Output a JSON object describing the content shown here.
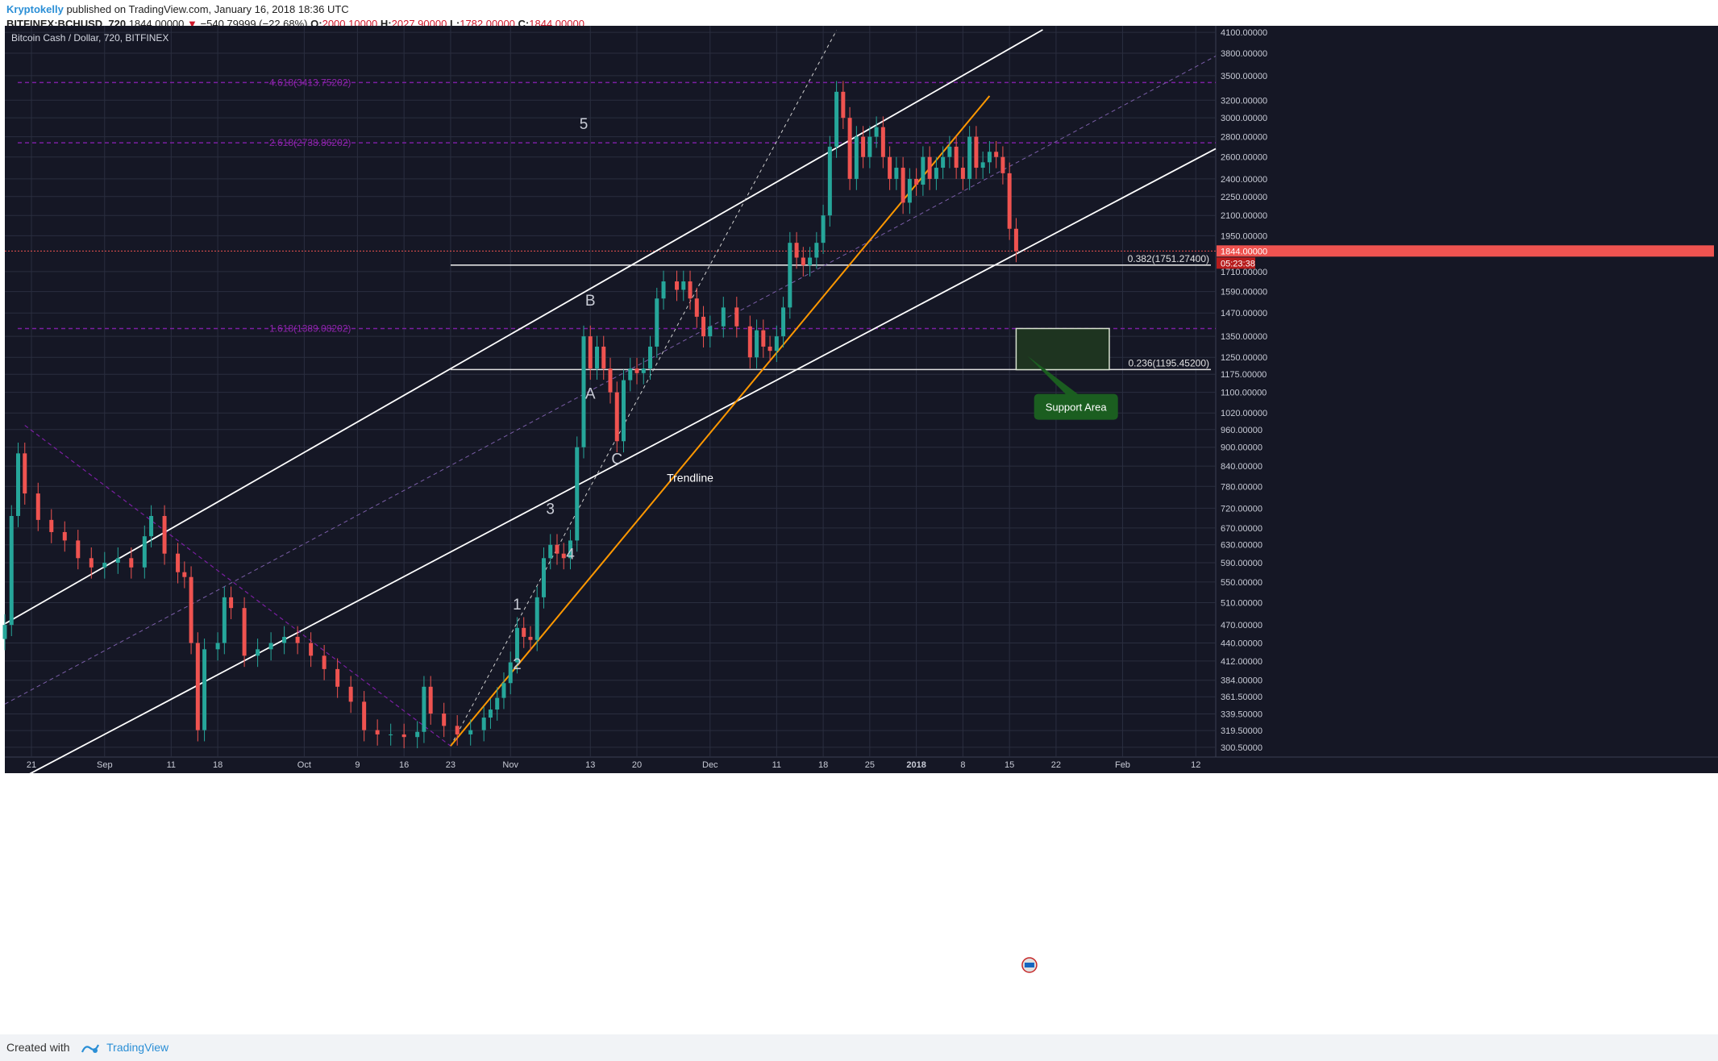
{
  "header": {
    "author": "Kryptokelly",
    "published": "published on TradingView.com, January 16, 2018 18:36 UTC",
    "symbol": "BITFINEX:BCHUSD, 720",
    "last": "1844.00000",
    "arrow": "▼",
    "change": "−540.79999 (−22.68%)",
    "open_label": "O:",
    "open": "2000.10000",
    "high_label": "H:",
    "high": "2027.90000",
    "low_label": "L:",
    "low": "1782.00000",
    "close_label": "C:",
    "close": "1844.00000"
  },
  "footer": {
    "created_with": "Created with",
    "brand": "TradingView"
  },
  "colors": {
    "background": "#151725",
    "grid": "#2a2e3f",
    "up": "#26a69a",
    "down": "#ef5350",
    "channel": "#ffffff",
    "trendline": "#ff9800",
    "fib": "#7b1fa2",
    "price_line": "#ef5350",
    "support_fill": "#1e3420",
    "support_label_bg": "#1b5e20"
  },
  "chart_data": {
    "type": "candlestick",
    "title": "Bitcoin Cash / Dollar, 720, BITFINEX",
    "y_scale": "log",
    "ylim": [
      290,
      4200
    ],
    "y_ticks": [
      "4100.00000",
      "3800.00000",
      "3500.00000",
      "3200.00000",
      "3000.00000",
      "2800.00000",
      "2600.00000",
      "2400.00000",
      "2250.00000",
      "2100.00000",
      "1950.00000",
      "1710.00000",
      "1590.00000",
      "1470.00000",
      "1350.00000",
      "1250.00000",
      "1175.00000",
      "1100.00000",
      "1020.00000",
      "960.00000",
      "900.00000",
      "840.00000",
      "780.00000",
      "720.00000",
      "670.00000",
      "630.00000",
      "590.00000",
      "550.00000",
      "510.00000",
      "470.00000",
      "440.00000",
      "412.00000",
      "384.00000",
      "361.50000",
      "339.50000",
      "319.50000",
      "300.50000"
    ],
    "x_ticks": [
      {
        "label": "21",
        "date": "2017-08-21"
      },
      {
        "label": "Sep",
        "date": "2017-09-01"
      },
      {
        "label": "11",
        "date": "2017-09-11"
      },
      {
        "label": "18",
        "date": "2017-09-18"
      },
      {
        "label": "Oct",
        "date": "2017-10-01"
      },
      {
        "label": "9",
        "date": "2017-10-09"
      },
      {
        "label": "16",
        "date": "2017-10-16"
      },
      {
        "label": "23",
        "date": "2017-10-23"
      },
      {
        "label": "Nov",
        "date": "2017-11-01"
      },
      {
        "label": "13",
        "date": "2017-11-13"
      },
      {
        "label": "20",
        "date": "2017-11-20"
      },
      {
        "label": "Dec",
        "date": "2017-12-01"
      },
      {
        "label": "11",
        "date": "2017-12-11"
      },
      {
        "label": "18",
        "date": "2017-12-18"
      },
      {
        "label": "25",
        "date": "2017-12-25"
      },
      {
        "label": "2018",
        "date": "2018-01-01"
      },
      {
        "label": "8",
        "date": "2018-01-08"
      },
      {
        "label": "15",
        "date": "2018-01-15"
      },
      {
        "label": "22",
        "date": "2018-01-22"
      },
      {
        "label": "Feb",
        "date": "2018-02-01"
      },
      {
        "label": "12",
        "date": "2018-02-12"
      }
    ],
    "x_range": [
      "2017-08-17",
      "2018-02-15"
    ],
    "series": [
      {
        "kind": "candles",
        "points": [
          {
            "date": "2017-08-17",
            "c": 470
          },
          {
            "date": "2017-08-18",
            "c": 700
          },
          {
            "date": "2017-08-19",
            "c": 880
          },
          {
            "date": "2017-08-20",
            "c": 760
          },
          {
            "date": "2017-08-22",
            "c": 690
          },
          {
            "date": "2017-08-24",
            "c": 660
          },
          {
            "date": "2017-08-26",
            "c": 640
          },
          {
            "date": "2017-08-28",
            "c": 600
          },
          {
            "date": "2017-08-30",
            "c": 580
          },
          {
            "date": "2017-09-01",
            "c": 590
          },
          {
            "date": "2017-09-03",
            "c": 600
          },
          {
            "date": "2017-09-05",
            "c": 580
          },
          {
            "date": "2017-09-07",
            "c": 650
          },
          {
            "date": "2017-09-08",
            "c": 700
          },
          {
            "date": "2017-09-10",
            "c": 610
          },
          {
            "date": "2017-09-12",
            "c": 570
          },
          {
            "date": "2017-09-13",
            "c": 560
          },
          {
            "date": "2017-09-14",
            "c": 440
          },
          {
            "date": "2017-09-15",
            "c": 320
          },
          {
            "date": "2017-09-16",
            "c": 430
          },
          {
            "date": "2017-09-18",
            "c": 440
          },
          {
            "date": "2017-09-19",
            "c": 520
          },
          {
            "date": "2017-09-20",
            "c": 500
          },
          {
            "date": "2017-09-22",
            "c": 420
          },
          {
            "date": "2017-09-24",
            "c": 430
          },
          {
            "date": "2017-09-26",
            "c": 440
          },
          {
            "date": "2017-09-28",
            "c": 450
          },
          {
            "date": "2017-09-30",
            "c": 440
          },
          {
            "date": "2017-10-02",
            "c": 420
          },
          {
            "date": "2017-10-04",
            "c": 400
          },
          {
            "date": "2017-10-06",
            "c": 375
          },
          {
            "date": "2017-10-08",
            "c": 355
          },
          {
            "date": "2017-10-10",
            "c": 320
          },
          {
            "date": "2017-10-12",
            "c": 315
          },
          {
            "date": "2017-10-14",
            "c": 315
          },
          {
            "date": "2017-10-16",
            "c": 312
          },
          {
            "date": "2017-10-18",
            "c": 318
          },
          {
            "date": "2017-10-19",
            "c": 375
          },
          {
            "date": "2017-10-20",
            "c": 340
          },
          {
            "date": "2017-10-22",
            "c": 325
          },
          {
            "date": "2017-10-24",
            "c": 315
          },
          {
            "date": "2017-10-26",
            "c": 320
          },
          {
            "date": "2017-10-28",
            "c": 335
          },
          {
            "date": "2017-10-29",
            "c": 345
          },
          {
            "date": "2017-10-30",
            "c": 360
          },
          {
            "date": "2017-10-31",
            "c": 380
          },
          {
            "date": "2017-11-01",
            "c": 410
          },
          {
            "date": "2017-11-02",
            "c": 465
          },
          {
            "date": "2017-11-03",
            "c": 450
          },
          {
            "date": "2017-11-04",
            "c": 445
          },
          {
            "date": "2017-11-05",
            "c": 520
          },
          {
            "date": "2017-11-06",
            "c": 600
          },
          {
            "date": "2017-11-07",
            "c": 630
          },
          {
            "date": "2017-11-08",
            "c": 610
          },
          {
            "date": "2017-11-09",
            "c": 600
          },
          {
            "date": "2017-11-10",
            "c": 640
          },
          {
            "date": "2017-11-11",
            "c": 900
          },
          {
            "date": "2017-11-12",
            "c": 1350
          },
          {
            "date": "2017-11-13",
            "c": 1200
          },
          {
            "date": "2017-11-14",
            "c": 1300
          },
          {
            "date": "2017-11-15",
            "c": 1200
          },
          {
            "date": "2017-11-16",
            "c": 1100
          },
          {
            "date": "2017-11-17",
            "c": 920
          },
          {
            "date": "2017-11-18",
            "c": 1150
          },
          {
            "date": "2017-11-19",
            "c": 1200
          },
          {
            "date": "2017-11-20",
            "c": 1180
          },
          {
            "date": "2017-11-21",
            "c": 1200
          },
          {
            "date": "2017-11-22",
            "c": 1300
          },
          {
            "date": "2017-11-23",
            "c": 1550
          },
          {
            "date": "2017-11-24",
            "c": 1650
          },
          {
            "date": "2017-11-26",
            "c": 1600
          },
          {
            "date": "2017-11-27",
            "c": 1650
          },
          {
            "date": "2017-11-28",
            "c": 1550
          },
          {
            "date": "2017-11-29",
            "c": 1450
          },
          {
            "date": "2017-11-30",
            "c": 1350
          },
          {
            "date": "2017-12-01",
            "c": 1400
          },
          {
            "date": "2017-12-03",
            "c": 1500
          },
          {
            "date": "2017-12-05",
            "c": 1400
          },
          {
            "date": "2017-12-07",
            "c": 1250
          },
          {
            "date": "2017-12-08",
            "c": 1380
          },
          {
            "date": "2017-12-09",
            "c": 1300
          },
          {
            "date": "2017-12-10",
            "c": 1280
          },
          {
            "date": "2017-12-11",
            "c": 1350
          },
          {
            "date": "2017-12-12",
            "c": 1500
          },
          {
            "date": "2017-12-13",
            "c": 1900
          },
          {
            "date": "2017-12-14",
            "c": 1800
          },
          {
            "date": "2017-12-15",
            "c": 1750
          },
          {
            "date": "2017-12-16",
            "c": 1800
          },
          {
            "date": "2017-12-17",
            "c": 1900
          },
          {
            "date": "2017-12-18",
            "c": 2100
          },
          {
            "date": "2017-12-19",
            "c": 2700
          },
          {
            "date": "2017-12-20",
            "c": 3300
          },
          {
            "date": "2017-12-21",
            "c": 3000
          },
          {
            "date": "2017-12-22",
            "c": 2400
          },
          {
            "date": "2017-12-23",
            "c": 2800
          },
          {
            "date": "2017-12-24",
            "c": 2600
          },
          {
            "date": "2017-12-25",
            "c": 2800
          },
          {
            "date": "2017-12-26",
            "c": 2900
          },
          {
            "date": "2017-12-27",
            "c": 2600
          },
          {
            "date": "2017-12-28",
            "c": 2400
          },
          {
            "date": "2017-12-29",
            "c": 2500
          },
          {
            "date": "2017-12-30",
            "c": 2200
          },
          {
            "date": "2017-12-31",
            "c": 2400
          },
          {
            "date": "2018-01-01",
            "c": 2350
          },
          {
            "date": "2018-01-02",
            "c": 2600
          },
          {
            "date": "2018-01-03",
            "c": 2400
          },
          {
            "date": "2018-01-04",
            "c": 2500
          },
          {
            "date": "2018-01-05",
            "c": 2600
          },
          {
            "date": "2018-01-06",
            "c": 2700
          },
          {
            "date": "2018-01-07",
            "c": 2500
          },
          {
            "date": "2018-01-08",
            "c": 2400
          },
          {
            "date": "2018-01-09",
            "c": 2800
          },
          {
            "date": "2018-01-10",
            "c": 2500
          },
          {
            "date": "2018-01-11",
            "c": 2550
          },
          {
            "date": "2018-01-12",
            "c": 2650
          },
          {
            "date": "2018-01-13",
            "c": 2600
          },
          {
            "date": "2018-01-14",
            "c": 2450
          },
          {
            "date": "2018-01-15",
            "c": 2000
          },
          {
            "date": "2018-01-16",
            "c": 1844
          }
        ]
      }
    ],
    "fib_levels": [
      {
        "label": "4.618(3413.75202)",
        "price": 3413.75
      },
      {
        "label": "2.618(2738.86202)",
        "price": 2738.86
      },
      {
        "label": "1.618(1389.08202)",
        "price": 1389.08
      }
    ],
    "retracements": [
      {
        "label": "0.382(1751.27400)",
        "price": 1751.274
      },
      {
        "label": "0.236(1195.45200)",
        "price": 1195.452
      }
    ],
    "last_price": {
      "label": "1844.00000",
      "countdown": "05:23:38",
      "price": 1844
    },
    "wave_labels": [
      {
        "text": "1",
        "date": "2017-11-02",
        "price": 497
      },
      {
        "text": "2",
        "date": "2017-11-02",
        "price": 400
      },
      {
        "text": "3",
        "date": "2017-11-07",
        "price": 705
      },
      {
        "text": "4",
        "date": "2017-11-10",
        "price": 598
      },
      {
        "text": "5",
        "date": "2017-11-12",
        "price": 2880
      },
      {
        "text": "A",
        "date": "2017-11-13",
        "price": 1075
      },
      {
        "text": "B",
        "date": "2017-11-13",
        "price": 1510
      },
      {
        "text": "C",
        "date": "2017-11-17",
        "price": 847
      }
    ],
    "annotations": [
      {
        "text": "Trendline",
        "date": "2017-11-28",
        "price": 793
      },
      {
        "text": "Support Area",
        "date": "2018-01-25",
        "price": 1040
      }
    ],
    "support_area": {
      "from": "2018-01-16",
      "to": "2018-01-30",
      "low": 1195,
      "high": 1389
    }
  }
}
